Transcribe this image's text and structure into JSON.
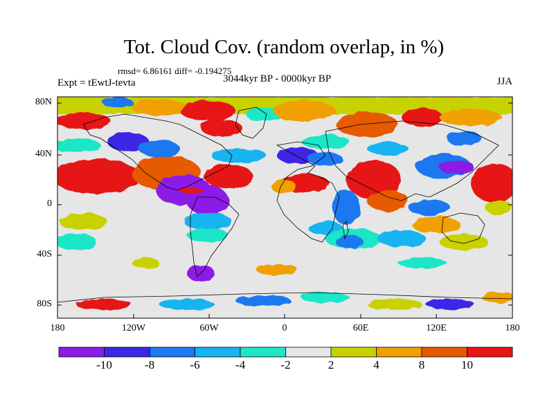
{
  "title": "Tot. Cloud Cov. (random overlap, in %)",
  "stats": "rmsd= 6.86161 diff= -0.194275",
  "experiment": "Expt = tEwtJ-tevta",
  "period": "3044kyr BP - 0000kyr BP",
  "season": "JJA",
  "map": {
    "lat_ticks": [
      "80N",
      "40N",
      "0",
      "40S",
      "80S"
    ],
    "lon_ticks": [
      "180",
      "120W",
      "60W",
      "0",
      "60E",
      "120E",
      "180"
    ]
  },
  "colorbar": {
    "tick_labels": [
      "-10",
      "-8",
      "-6",
      "-4",
      "-2",
      "2",
      "4",
      "8",
      "10"
    ],
    "colors": [
      "#8a1ee6",
      "#3c28e6",
      "#1e78f0",
      "#14b4f0",
      "#1ee6c8",
      "#e6e6e6",
      "#c8d200",
      "#f0a000",
      "#e65a00",
      "#e61414"
    ]
  },
  "colors": {
    "land_outline": "#000000",
    "missing": "#e6e6e6"
  }
}
